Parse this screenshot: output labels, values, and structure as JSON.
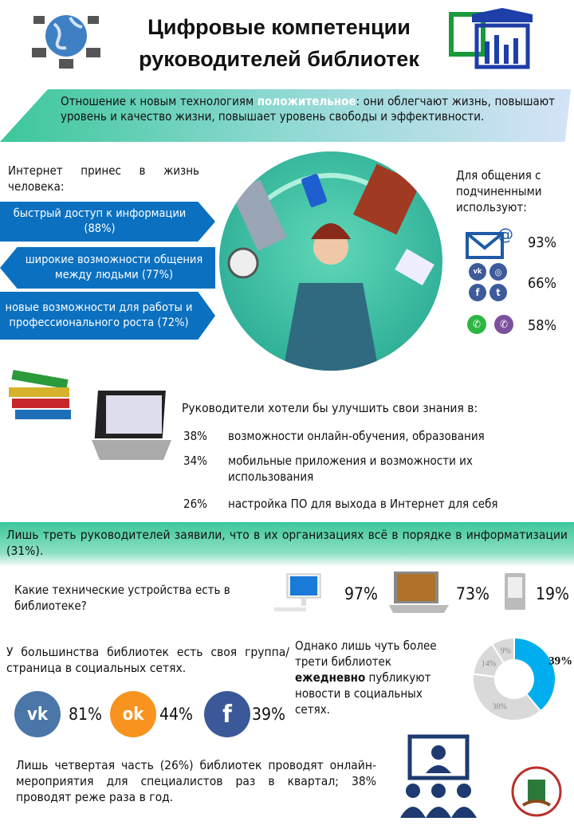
{
  "header": {
    "title_line1": "Цифровые компетенции",
    "title_line2": "руководителей  библиотек"
  },
  "banner1": {
    "text_before": "Отношение к новым технологиям ",
    "highlight": "положительное",
    "text_after": ": они облегчают жизнь, повышают уровень и качество жизни, повышает уровень свободы и эффективности."
  },
  "internet": {
    "heading": "Интернет принес в жизнь человека:",
    "items": [
      {
        "label": "быстрый доступ к информации (88%)"
      },
      {
        "label": "широкие возможности общения между людьми (77%)"
      },
      {
        "label": "новые возможности для работы и профессионального роста (72%)"
      }
    ]
  },
  "communication": {
    "heading": "Для общения с подчиненными используют:",
    "items": [
      {
        "icon": "email-icon",
        "value": "93%"
      },
      {
        "icon": "social-networks-icon",
        "value": "66%"
      },
      {
        "icon": "messengers-icon",
        "value": "58%"
      }
    ],
    "icon_labels": {
      "vk": "vk",
      "ig": "◎",
      "fb": "f",
      "tw": "t",
      "wa": "✆",
      "vb": "✆",
      "at": "@"
    }
  },
  "improve": {
    "heading": "Руководители хотели бы улучшить свои знания в:",
    "items": [
      {
        "pct": "38%",
        "label": "возможности онлайн-обучения, образования"
      },
      {
        "pct": "34%",
        "label": "мобильные приложения и возможности их использования"
      },
      {
        "pct": "26%",
        "label": "настройка ПО для выхода в Интернет для себя"
      }
    ]
  },
  "banner2": {
    "text": "Лишь треть руководителей заявили, что в их организациях всё в порядке в информатизации (31%)."
  },
  "devices": {
    "question": "Какие технические устройства есть в библиотеке?",
    "items": [
      {
        "icon": "desktop-computer-icon",
        "value": "97%"
      },
      {
        "icon": "laptop-icon",
        "value": "73%"
      },
      {
        "icon": "ebook-reader-icon",
        "value": "19%"
      }
    ]
  },
  "social": {
    "text": "У большинства библиотек есть своя группа/страница в социальных сетях.",
    "items": [
      {
        "icon": "vk-icon",
        "glyph": "vk",
        "value": "81%",
        "color": "#4a76a8"
      },
      {
        "icon": "odnoklassniki-icon",
        "glyph": "ok",
        "value": "44%",
        "color": "#f7931e"
      },
      {
        "icon": "facebook-icon",
        "glyph": "f",
        "value": "39%",
        "color": "#3b5998"
      }
    ]
  },
  "daily": {
    "text_before": "Однако лишь чуть более трети библиотек ",
    "bold": "ежедневно",
    "text_after": " публикуют новости в социальных сетях."
  },
  "chart_data": {
    "type": "pie",
    "donut": true,
    "values": [
      39,
      38,
      14,
      9
    ],
    "labels": [
      "39%",
      "38%",
      "14%",
      "9%"
    ],
    "colors": [
      "#00aeef",
      "#d9d9d9",
      "#d9d9d9",
      "#d9d9d9"
    ]
  },
  "events": {
    "text": "Лишь четвертая часть (26%) библиотек проводят онлайн-мероприятия для специалистов раз в квартал; 38% проводят реже раза в год."
  }
}
